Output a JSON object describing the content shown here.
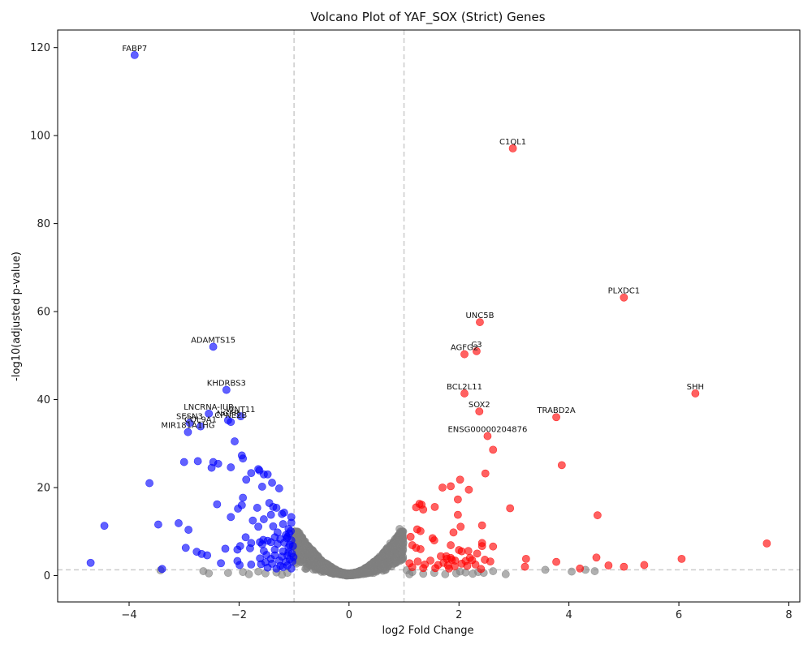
{
  "chart_data": {
    "type": "scatter",
    "title": "Volcano Plot of YAF_SOX (Strict) Genes",
    "xlabel": "log2 Fold Change",
    "ylabel": "-log10(adjusted p-value)",
    "xlim": [
      -5.3,
      8.2
    ],
    "ylim": [
      -6,
      124
    ],
    "xticks": [
      -4,
      -2,
      0,
      2,
      4,
      6,
      8
    ],
    "yticks": [
      0,
      20,
      40,
      60,
      80,
      100,
      120
    ],
    "thresholds": {
      "log2fc": [
        -1,
        1
      ],
      "neg_log10_padj": 1.3
    },
    "colors": {
      "down": "#0000ff",
      "up": "#ff0000",
      "ns": "#808080",
      "threshold_line": "#cccccc"
    },
    "labeled_genes": [
      {
        "gene": "FABP7",
        "x": -3.9,
        "y": 118.3,
        "group": "down"
      },
      {
        "gene": "C1QL1",
        "x": 2.98,
        "y": 97.1,
        "group": "up"
      },
      {
        "gene": "PLXDC1",
        "x": 5.0,
        "y": 63.2,
        "group": "up"
      },
      {
        "gene": "UNC5B",
        "x": 2.38,
        "y": 57.6,
        "group": "up"
      },
      {
        "gene": "ADAMTS15",
        "x": -2.47,
        "y": 52.0,
        "group": "down"
      },
      {
        "gene": "C3",
        "x": 2.32,
        "y": 51.0,
        "group": "up"
      },
      {
        "gene": "AGFG2",
        "x": 2.1,
        "y": 50.3,
        "group": "up"
      },
      {
        "gene": "KHDRBS3",
        "x": -2.23,
        "y": 42.2,
        "group": "down"
      },
      {
        "gene": "BCL2L11",
        "x": 2.1,
        "y": 41.4,
        "group": "up"
      },
      {
        "gene": "SHH",
        "x": 6.3,
        "y": 41.4,
        "group": "up"
      },
      {
        "gene": "SOX2",
        "x": 2.37,
        "y": 37.3,
        "group": "up"
      },
      {
        "gene": "LNCRNA-IUR",
        "x": -2.55,
        "y": 36.8,
        "group": "down"
      },
      {
        "gene": "WNT11",
        "x": -1.97,
        "y": 36.2,
        "group": "down"
      },
      {
        "gene": "TRABD2A",
        "x": 3.77,
        "y": 36.0,
        "group": "up"
      },
      {
        "gene": "NGFR",
        "x": -2.2,
        "y": 35.3,
        "group": "down"
      },
      {
        "gene": "CPNE2B",
        "x": -2.15,
        "y": 34.9,
        "group": "down"
      },
      {
        "gene": "SESN3",
        "x": -2.9,
        "y": 34.7,
        "group": "down"
      },
      {
        "gene": "COL9A1",
        "x": -2.7,
        "y": 33.9,
        "group": "down"
      },
      {
        "gene": "MIR181A1HG",
        "x": -2.93,
        "y": 32.6,
        "group": "down"
      },
      {
        "gene": "ENSG00000204876",
        "x": 2.52,
        "y": 31.7,
        "group": "up"
      }
    ],
    "down_points": [
      [
        -3.0,
        25.8
      ],
      [
        -2.75,
        26.0
      ],
      [
        -2.47,
        25.8
      ],
      [
        -2.38,
        25.4
      ],
      [
        -2.5,
        24.5
      ],
      [
        -2.15,
        24.6
      ],
      [
        -1.95,
        27.3
      ],
      [
        -1.93,
        26.6
      ],
      [
        -2.08,
        30.5
      ],
      [
        -1.65,
        24.2
      ],
      [
        -1.55,
        23.0
      ],
      [
        -1.78,
        23.3
      ],
      [
        -1.63,
        23.9
      ],
      [
        -1.48,
        23.0
      ],
      [
        -1.4,
        21.1
      ],
      [
        -1.87,
        21.8
      ],
      [
        -1.58,
        20.2
      ],
      [
        -1.27,
        19.8
      ],
      [
        -3.63,
        21.0
      ],
      [
        -1.93,
        17.7
      ],
      [
        -2.4,
        16.2
      ],
      [
        -1.95,
        16.0
      ],
      [
        -1.67,
        15.4
      ],
      [
        -2.02,
        15.2
      ],
      [
        -1.45,
        16.5
      ],
      [
        -1.38,
        15.6
      ],
      [
        -1.32,
        15.4
      ],
      [
        -2.15,
        13.3
      ],
      [
        -1.75,
        12.5
      ],
      [
        -1.55,
        12.8
      ],
      [
        -1.42,
        13.8
      ],
      [
        -1.22,
        14.0
      ],
      [
        -1.05,
        13.3
      ],
      [
        -1.18,
        14.3
      ],
      [
        -1.05,
        12.0
      ],
      [
        -3.1,
        11.9
      ],
      [
        -3.47,
        11.6
      ],
      [
        -4.45,
        11.3
      ],
      [
        -2.92,
        10.4
      ],
      [
        -1.65,
        11.1
      ],
      [
        -1.38,
        11.2
      ],
      [
        -1.2,
        11.7
      ],
      [
        -1.1,
        10.6
      ],
      [
        -1.3,
        9.8
      ],
      [
        -1.15,
        9.2
      ],
      [
        -1.88,
        8.7
      ],
      [
        -1.56,
        8.1
      ],
      [
        -1.35,
        8.7
      ],
      [
        -1.25,
        8.3
      ],
      [
        -1.12,
        8.8
      ],
      [
        -1.05,
        8.0
      ],
      [
        -1.48,
        7.9
      ],
      [
        -1.62,
        7.6
      ],
      [
        -1.78,
        7.4
      ],
      [
        -1.58,
        7.1
      ],
      [
        -1.42,
        7.6
      ],
      [
        -1.3,
        7.2
      ],
      [
        -1.18,
        7.5
      ],
      [
        -1.08,
        7.0
      ],
      [
        -1.98,
        6.7
      ],
      [
        -2.25,
        6.1
      ],
      [
        -2.03,
        5.9
      ],
      [
        -1.8,
        6.2
      ],
      [
        -1.55,
        5.6
      ],
      [
        -1.35,
        5.9
      ],
      [
        -1.2,
        5.5
      ],
      [
        -1.1,
        5.3
      ],
      [
        -2.97,
        6.3
      ],
      [
        -2.77,
        5.4
      ],
      [
        -2.68,
        4.9
      ],
      [
        -2.58,
        4.6
      ],
      [
        -1.5,
        4.7
      ],
      [
        -1.35,
        4.6
      ],
      [
        -1.22,
        4.3
      ],
      [
        -1.12,
        4.6
      ],
      [
        -1.62,
        3.9
      ],
      [
        -1.42,
        3.8
      ],
      [
        -1.27,
        3.4
      ],
      [
        -1.15,
        3.1
      ],
      [
        -2.03,
        3.3
      ],
      [
        -1.52,
        3.0
      ],
      [
        -1.08,
        3.7
      ],
      [
        -2.33,
        2.8
      ],
      [
        -1.99,
        2.4
      ],
      [
        -1.78,
        2.5
      ],
      [
        -1.6,
        2.6
      ],
      [
        -1.4,
        2.7
      ],
      [
        -1.25,
        2.2
      ],
      [
        -1.12,
        2.3
      ],
      [
        -1.48,
        1.8
      ],
      [
        -1.32,
        1.6
      ],
      [
        -1.2,
        1.9
      ],
      [
        -1.05,
        1.6
      ],
      [
        -4.7,
        2.9
      ],
      [
        -3.4,
        1.5
      ],
      [
        -1.06,
        10.1
      ],
      [
        -1.09,
        9.6
      ],
      [
        -1.13,
        8.5
      ],
      [
        -1.1,
        6.4
      ],
      [
        -1.02,
        6.7
      ],
      [
        -1.04,
        5.0
      ],
      [
        -1.01,
        4.2
      ],
      [
        -1.03,
        3.2
      ]
    ],
    "up_points": [
      [
        2.62,
        28.6
      ],
      [
        3.87,
        25.1
      ],
      [
        2.48,
        23.2
      ],
      [
        2.02,
        21.8
      ],
      [
        1.7,
        20.0
      ],
      [
        1.85,
        20.3
      ],
      [
        2.18,
        19.5
      ],
      [
        1.98,
        17.3
      ],
      [
        1.28,
        16.3
      ],
      [
        1.32,
        16.1
      ],
      [
        1.22,
        15.5
      ],
      [
        1.35,
        15.0
      ],
      [
        1.56,
        15.6
      ],
      [
        2.93,
        15.3
      ],
      [
        4.52,
        13.7
      ],
      [
        1.98,
        13.8
      ],
      [
        2.03,
        11.1
      ],
      [
        2.42,
        11.4
      ],
      [
        1.24,
        10.5
      ],
      [
        1.3,
        10.1
      ],
      [
        1.9,
        9.8
      ],
      [
        1.12,
        8.8
      ],
      [
        1.52,
        8.5
      ],
      [
        1.55,
        8.0
      ],
      [
        7.6,
        7.3
      ],
      [
        2.42,
        7.4
      ],
      [
        2.42,
        6.7
      ],
      [
        2.62,
        6.6
      ],
      [
        1.15,
        6.9
      ],
      [
        1.85,
        6.9
      ],
      [
        1.22,
        6.3
      ],
      [
        1.3,
        6.0
      ],
      [
        2.0,
        5.8
      ],
      [
        2.05,
        5.5
      ],
      [
        2.17,
        5.6
      ],
      [
        2.33,
        5.0
      ],
      [
        1.67,
        4.4
      ],
      [
        1.77,
        4.4
      ],
      [
        1.85,
        4.0
      ],
      [
        2.2,
        4.0
      ],
      [
        1.78,
        3.8
      ],
      [
        1.87,
        3.6
      ],
      [
        1.93,
        3.4
      ],
      [
        2.12,
        3.3
      ],
      [
        2.24,
        3.5
      ],
      [
        2.47,
        3.6
      ],
      [
        2.57,
        3.2
      ],
      [
        3.22,
        3.8
      ],
      [
        3.77,
        3.1
      ],
      [
        4.5,
        4.1
      ],
      [
        6.05,
        3.8
      ],
      [
        1.1,
        2.8
      ],
      [
        1.25,
        3.2
      ],
      [
        1.38,
        2.5
      ],
      [
        1.48,
        3.4
      ],
      [
        1.62,
        2.4
      ],
      [
        1.72,
        2.9
      ],
      [
        1.8,
        2.3
      ],
      [
        1.92,
        2.1
      ],
      [
        2.05,
        2.7
      ],
      [
        2.15,
        2.2
      ],
      [
        2.3,
        2.5
      ],
      [
        3.2,
        2.0
      ],
      [
        4.2,
        1.6
      ],
      [
        4.72,
        2.3
      ],
      [
        5.0,
        2.0
      ],
      [
        5.37,
        2.4
      ],
      [
        1.15,
        1.9
      ],
      [
        1.35,
        1.7
      ],
      [
        1.57,
        1.7
      ],
      [
        1.82,
        1.6
      ],
      [
        2.4,
        1.5
      ]
    ],
    "ns_points": [
      [
        -2.65,
        1.0
      ],
      [
        -2.55,
        0.5
      ],
      [
        -2.2,
        0.6
      ],
      [
        -1.93,
        0.8
      ],
      [
        -1.82,
        0.3
      ],
      [
        -1.65,
        0.9
      ],
      [
        -1.52,
        0.5
      ],
      [
        -1.32,
        0.7
      ],
      [
        -1.22,
        0.2
      ],
      [
        -1.12,
        0.6
      ],
      [
        -3.43,
        1.2
      ],
      [
        0.92,
        10.6
      ],
      [
        0.9,
        7.8
      ],
      [
        0.85,
        6.8
      ],
      [
        0.75,
        7.3
      ],
      [
        0.68,
        4.6
      ],
      [
        0.8,
        6.0
      ],
      [
        0.6,
        4.4
      ],
      [
        0.95,
        5.0
      ],
      [
        1.15,
        0.8
      ],
      [
        1.35,
        0.4
      ],
      [
        1.55,
        0.6
      ],
      [
        1.75,
        0.3
      ],
      [
        1.95,
        0.5
      ],
      [
        2.12,
        0.7
      ],
      [
        2.25,
        0.4
      ],
      [
        2.45,
        0.6
      ],
      [
        2.62,
        1.0
      ],
      [
        2.85,
        0.3
      ],
      [
        3.57,
        1.3
      ],
      [
        4.05,
        0.9
      ],
      [
        4.3,
        1.3
      ],
      [
        4.47,
        1.0
      ],
      [
        1.05,
        1.2
      ],
      [
        1.1,
        0.3
      ],
      [
        2.02,
        0.9
      ],
      [
        2.35,
        0.8
      ]
    ]
  }
}
